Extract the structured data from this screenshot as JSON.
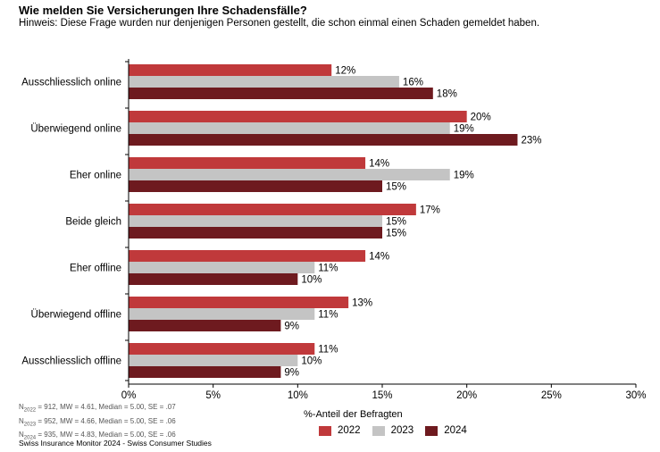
{
  "title": "Wie melden Sie Versicherungen Ihre Schadensfälle?",
  "subtitle": "Hinweis: Diese Frage wurden nur denjenigen Personen gestellt, die schon einmal einen Schaden gemeldet haben.",
  "notes": [
    {
      "year": "2022",
      "text": "= 912, MW = 4.61, Median = 5.00, SE = .07"
    },
    {
      "year": "2023",
      "text": "= 952, MW = 4.66, Median = 5.00, SE = .06"
    },
    {
      "year": "2024",
      "text": "= 935, MW = 4.83, Median = 5.00, SE = .06"
    }
  ],
  "source": "Swiss Insurance Monitor 2024 - Swiss Consumer Studies",
  "chart_data": {
    "type": "bar",
    "orientation": "horizontal",
    "title": "Wie melden Sie Versicherungen Ihre Schadensfälle?",
    "xlabel": "%-Anteil der Befragten",
    "ylabel": "",
    "xlim": [
      0,
      30
    ],
    "ticks": [
      0,
      5,
      10,
      15,
      20,
      25,
      30
    ],
    "tick_suffix": "%",
    "grid": false,
    "legend": "bottom-center",
    "categories": [
      "Ausschliesslich online",
      "Überwiegend online",
      "Eher online",
      "Beide gleich",
      "Eher offline",
      "Überwiegend offline",
      "Ausschliesslich offline"
    ],
    "series": [
      {
        "name": "2022",
        "color": "#c0393b",
        "values": [
          12,
          20,
          14,
          17,
          14,
          13,
          11
        ]
      },
      {
        "name": "2023",
        "color": "#c4c4c4",
        "values": [
          16,
          19,
          19,
          15,
          11,
          11,
          10
        ]
      },
      {
        "name": "2024",
        "color": "#6e1a1f",
        "values": [
          18,
          23,
          15,
          15,
          10,
          9,
          9
        ]
      }
    ]
  }
}
